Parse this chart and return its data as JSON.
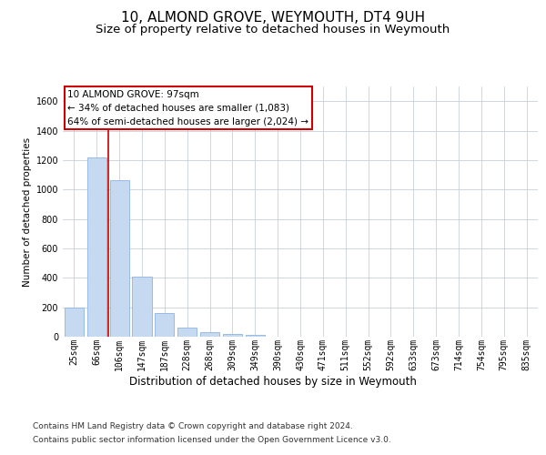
{
  "title": "10, ALMOND GROVE, WEYMOUTH, DT4 9UH",
  "subtitle": "Size of property relative to detached houses in Weymouth",
  "xlabel": "Distribution of detached houses by size in Weymouth",
  "ylabel": "Number of detached properties",
  "categories": [
    "25sqm",
    "66sqm",
    "106sqm",
    "147sqm",
    "187sqm",
    "228sqm",
    "268sqm",
    "309sqm",
    "349sqm",
    "390sqm",
    "430sqm",
    "471sqm",
    "511sqm",
    "552sqm",
    "592sqm",
    "633sqm",
    "673sqm",
    "714sqm",
    "754sqm",
    "795sqm",
    "835sqm"
  ],
  "values": [
    200,
    1220,
    1065,
    405,
    163,
    60,
    28,
    18,
    13,
    0,
    0,
    0,
    0,
    0,
    0,
    0,
    0,
    0,
    0,
    0,
    0
  ],
  "bar_color": "#c5d9f1",
  "bar_edge_color": "#8db4e2",
  "ylim": [
    0,
    1700
  ],
  "yticks": [
    0,
    200,
    400,
    600,
    800,
    1000,
    1200,
    1400,
    1600
  ],
  "annotation_text": "10 ALMOND GROVE: 97sqm\n← 34% of detached houses are smaller (1,083)\n64% of semi-detached houses are larger (2,024) →",
  "annotation_box_color": "#ffffff",
  "annotation_box_edge": "#cc0000",
  "footer_line1": "Contains HM Land Registry data © Crown copyright and database right 2024.",
  "footer_line2": "Contains public sector information licensed under the Open Government Licence v3.0.",
  "background_color": "#ffffff",
  "grid_color": "#c8d0dc",
  "title_fontsize": 11,
  "subtitle_fontsize": 9.5,
  "xlabel_fontsize": 8.5,
  "ylabel_fontsize": 7.5,
  "tick_fontsize": 7,
  "annotation_fontsize": 7.5,
  "footer_fontsize": 6.5
}
